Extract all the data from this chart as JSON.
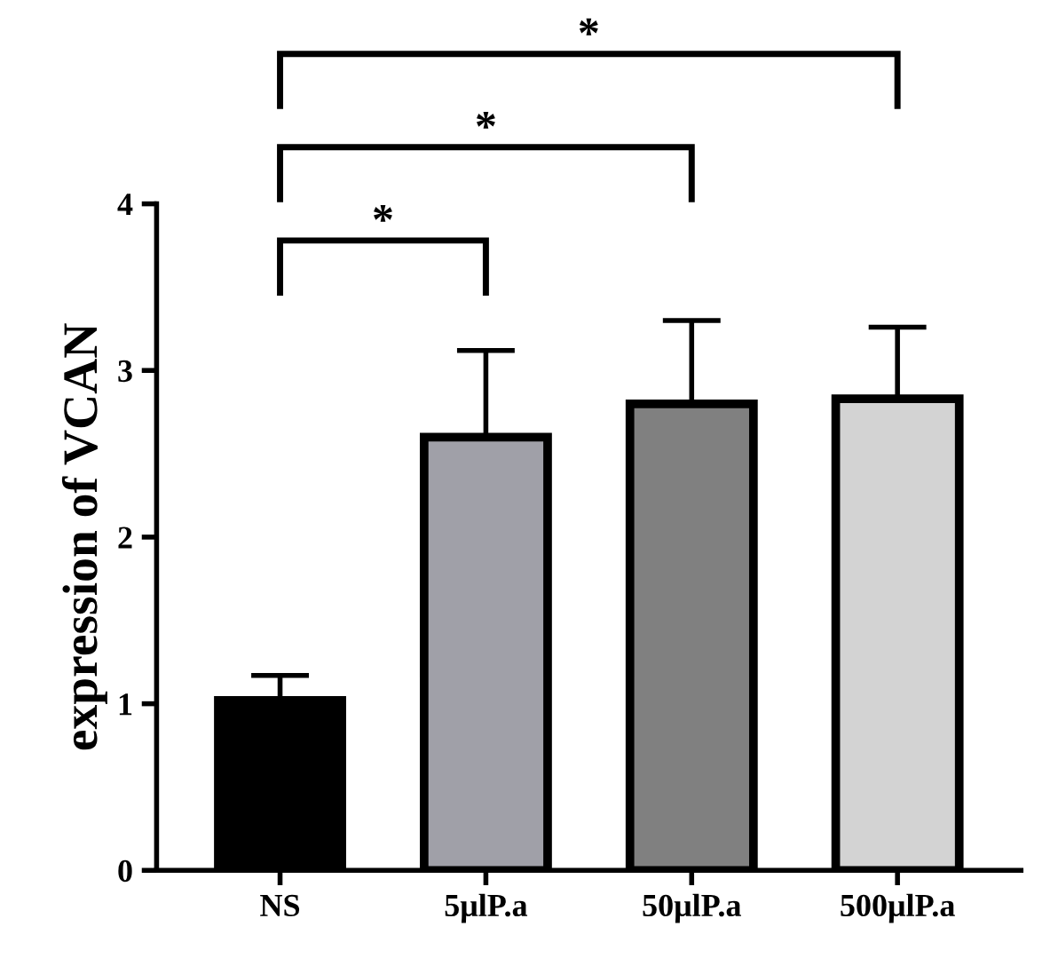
{
  "chart_data": {
    "type": "bar",
    "categories": [
      "NS",
      "5μlP.a",
      "50μlP.a",
      "500μlP.a"
    ],
    "values": [
      1.02,
      2.6,
      2.8,
      2.83
    ],
    "colors": [
      "#000000",
      "#a0a0a8",
      "#808080",
      "#d3d3d3"
    ],
    "errors": [
      [
        1.02,
        1.17
      ],
      [
        2.6,
        3.12
      ],
      [
        2.8,
        3.3
      ],
      [
        2.83,
        3.26
      ]
    ],
    "ylabel": "expression of VCAN",
    "ylim": [
      0,
      4
    ],
    "yticks": [
      0,
      1,
      2,
      3,
      4
    ],
    "grid": false,
    "annotations": [
      "*",
      "*",
      "*"
    ]
  }
}
